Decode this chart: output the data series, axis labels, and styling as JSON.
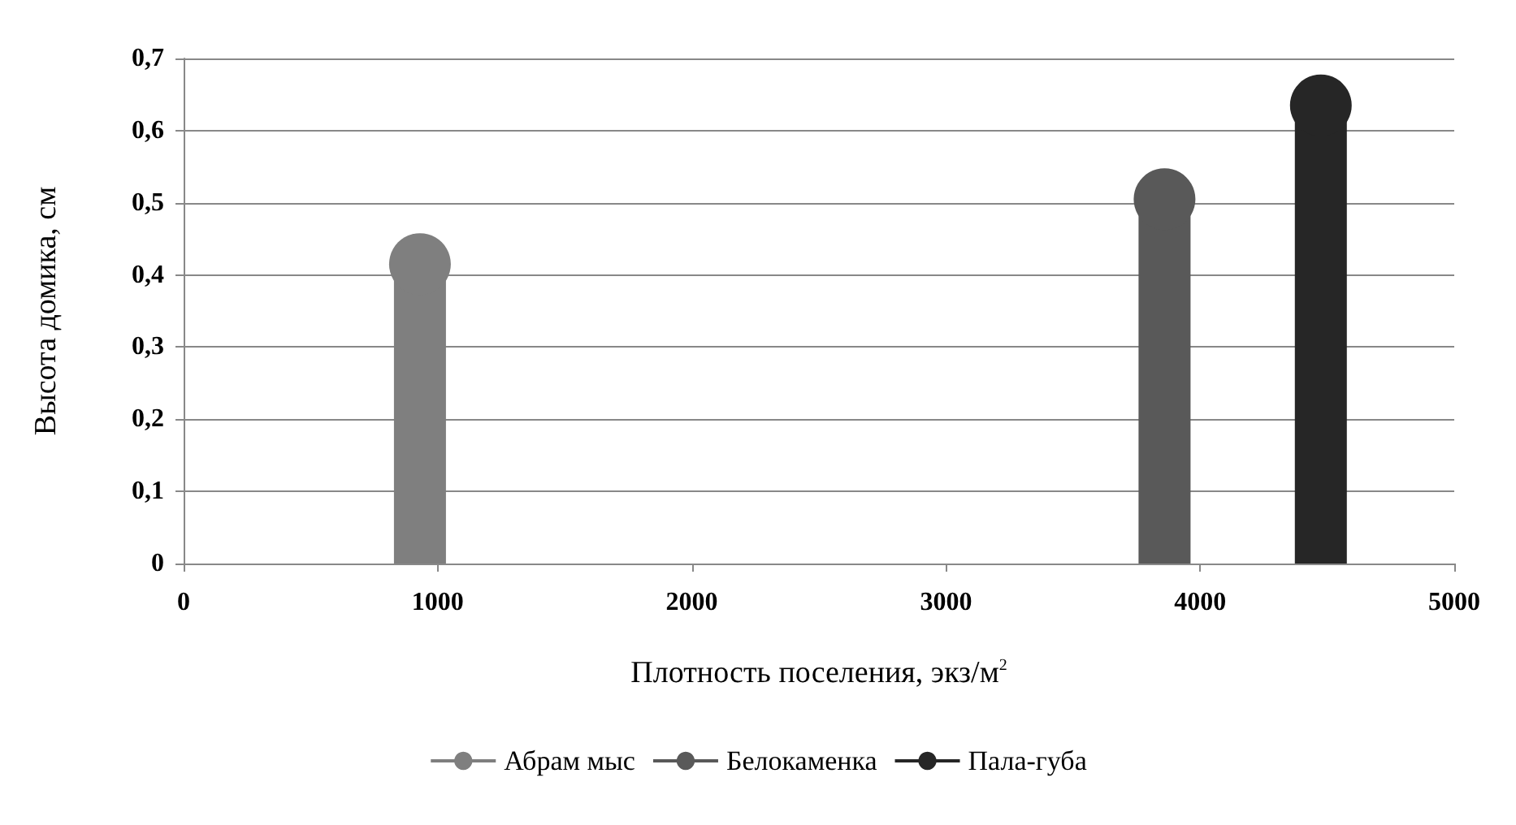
{
  "chart_data": {
    "type": "lollipop",
    "xlabel": "Плотность поселения, экз/м$^{2}$",
    "ylabel": "Высота домика, см",
    "series": [
      {
        "name": "Абрам мыс",
        "color": "#7f7f7f",
        "x": [
          930
        ],
        "values": [
          0.415
        ]
      },
      {
        "name": "Белокаменка",
        "color": "#595959",
        "x": [
          3860
        ],
        "values": [
          0.505
        ]
      },
      {
        "name": "Пала-губа",
        "color": "#262626",
        "x": [
          4475
        ],
        "values": [
          0.635
        ]
      }
    ],
    "xlim": [
      0,
      5000
    ],
    "xticks": [
      0,
      1000,
      2000,
      3000,
      4000,
      5000
    ],
    "ylim": [
      0,
      0.7
    ],
    "yticks": [
      {
        "value": 0,
        "label": "0"
      },
      {
        "value": 0.1,
        "label": "0,1"
      },
      {
        "value": 0.2,
        "label": "0,2"
      },
      {
        "value": 0.3,
        "label": "0,3"
      },
      {
        "value": 0.4,
        "label": "0,4"
      },
      {
        "value": 0.5,
        "label": "0,5"
      },
      {
        "value": 0.6,
        "label": "0,6"
      },
      {
        "value": 0.7,
        "label": "0,7"
      }
    ],
    "grid": "y",
    "legend": "bottom",
    "marker": "circle"
  }
}
